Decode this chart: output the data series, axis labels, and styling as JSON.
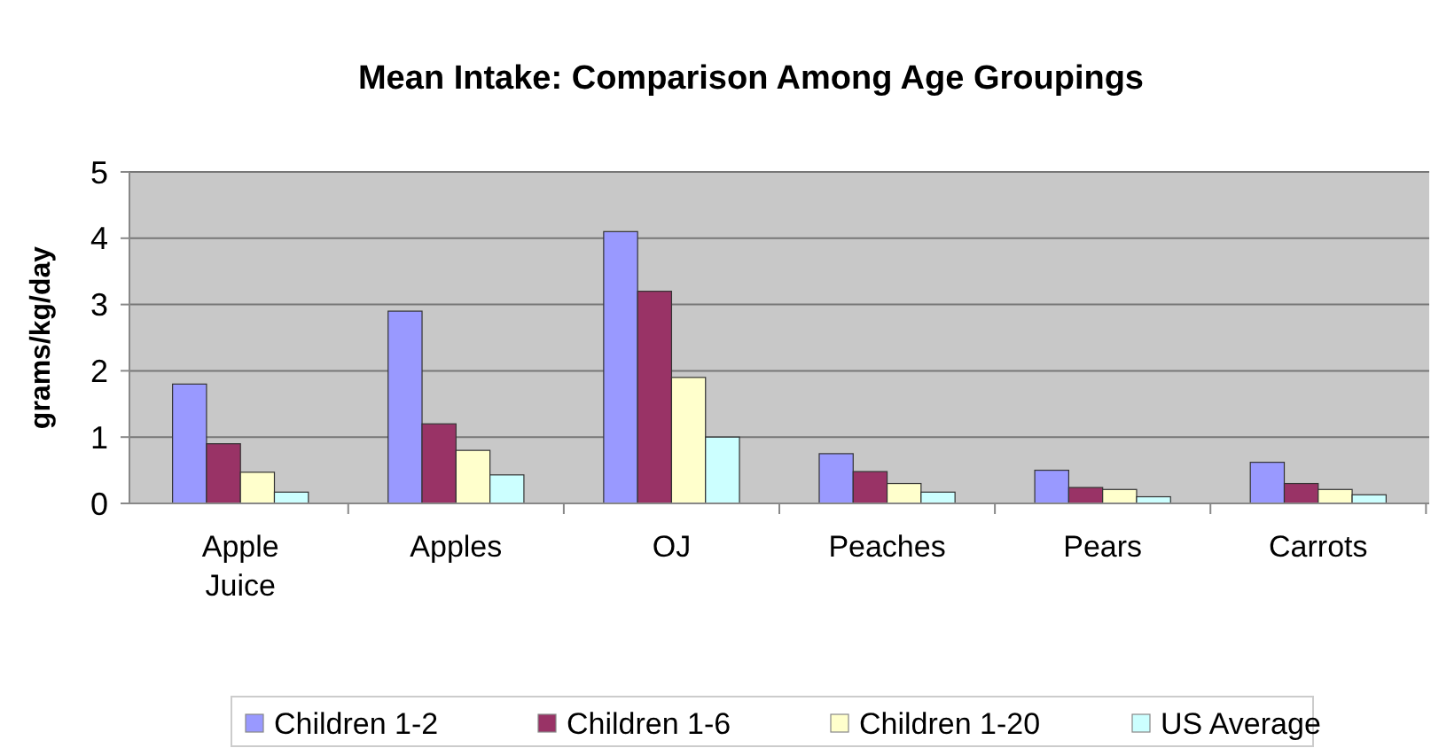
{
  "chart_data": {
    "type": "bar",
    "title": "Mean Intake: Comparison Among Age Groupings",
    "ylabel": "grams/kg/day",
    "categories": [
      "Apple Juice",
      "Apples",
      "OJ",
      "Peaches",
      "Pears",
      "Carrots"
    ],
    "series": [
      {
        "name": "Children 1-2",
        "color": "#9999ff",
        "values": [
          1.8,
          2.9,
          4.1,
          0.75,
          0.5,
          0.62
        ]
      },
      {
        "name": "Children 1-6",
        "color": "#993366",
        "values": [
          0.9,
          1.2,
          3.2,
          0.48,
          0.24,
          0.3
        ]
      },
      {
        "name": "Children 1-20",
        "color": "#ffffcc",
        "values": [
          0.47,
          0.8,
          1.9,
          0.3,
          0.21,
          0.21
        ]
      },
      {
        "name": "US Average",
        "color": "#ccffff",
        "values": [
          0.17,
          0.43,
          1.0,
          0.17,
          0.1,
          0.13
        ]
      }
    ],
    "ylim": [
      0,
      5
    ],
    "yticks": [
      0,
      1,
      2,
      3,
      4,
      5
    ],
    "grid": "y",
    "legend": "bottom"
  }
}
